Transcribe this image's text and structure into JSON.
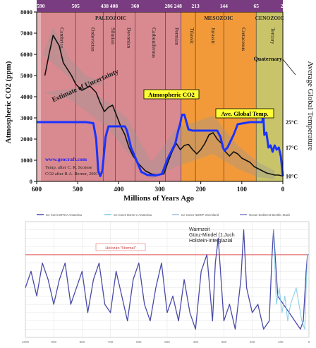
{
  "chart_data": [
    {
      "type": "line",
      "xlabel": "Millions of Years Ago",
      "ylabel": "Atmospheric CO2 (ppm)",
      "ylabel_right": "Average Global Temperature",
      "xlim": [
        600,
        0
      ],
      "ylim": [
        0,
        8000
      ],
      "x_ticks": [
        600,
        500,
        400,
        300,
        200,
        100,
        0
      ],
      "y_ticks": [
        0,
        1000,
        2000,
        3000,
        4000,
        5000,
        6000,
        7000,
        8000
      ],
      "top_ticks": [
        "590",
        "505",
        "438 408",
        "360",
        "286 248",
        "213",
        "144",
        "65",
        "2"
      ],
      "right_ticks": [
        {
          "label": "25°C",
          "level": 2800
        },
        {
          "label": "17°C",
          "level": 1600
        },
        {
          "label": "10°C",
          "level": 250
        }
      ],
      "eras": [
        {
          "label": "PALEOZOIC",
          "from": 590,
          "to": 248,
          "color": "#d98a90"
        },
        {
          "label": "MESOZOIC",
          "from": 248,
          "to": 65,
          "color": "#f29a3a"
        },
        {
          "label": "CENOZOIC",
          "from": 65,
          "to": 0,
          "color": "#c9c46a"
        }
      ],
      "periods": [
        {
          "label": "Cambrian",
          "from": 590,
          "to": 505
        },
        {
          "label": "Ordovician",
          "from": 505,
          "to": 438
        },
        {
          "label": "Silurian",
          "from": 438,
          "to": 408
        },
        {
          "label": "Devonian",
          "from": 408,
          "to": 360
        },
        {
          "label": "Carboniferous",
          "from": 360,
          "to": 286
        },
        {
          "label": "Permian",
          "from": 286,
          "to": 248
        },
        {
          "label": "Triassic",
          "from": 248,
          "to": 213
        },
        {
          "label": "Jurassic",
          "from": 213,
          "to": 144
        },
        {
          "label": "Cretaceous",
          "from": 144,
          "to": 65
        },
        {
          "label": "Tertiary",
          "from": 65,
          "to": 2
        }
      ],
      "quaternary_label": "Quaternary",
      "annotations": {
        "uncertainty": "Estimate of Uncertainty",
        "co2_label": "Atmospheric CO2",
        "temp_label": "Ave. Global Temp.",
        "site": "www.geocraft.com",
        "credit1": "Temp. after C. R. Scotese",
        "credit2": "CO2 after R.A. Berner, 2001"
      },
      "series": [
        {
          "name": "Atmospheric CO2",
          "color": "#111111",
          "x": [
            580,
            570,
            560,
            545,
            535,
            525,
            515,
            505,
            490,
            470,
            455,
            445,
            435,
            425,
            415,
            405,
            395,
            385,
            375,
            365,
            350,
            335,
            320,
            305,
            290,
            280,
            270,
            260,
            250,
            240,
            230,
            220,
            210,
            200,
            190,
            180,
            170,
            160,
            150,
            140,
            130,
            120,
            110,
            100,
            90,
            80,
            70,
            60,
            50,
            40,
            30,
            20,
            10,
            0
          ],
          "values": [
            5000,
            6000,
            6900,
            6400,
            5600,
            5300,
            5000,
            4600,
            4300,
            4500,
            4200,
            3700,
            3300,
            3500,
            3600,
            3100,
            2600,
            2200,
            1600,
            1200,
            800,
            500,
            350,
            300,
            350,
            900,
            1400,
            1800,
            1500,
            1700,
            1750,
            1500,
            1300,
            1500,
            1800,
            2200,
            2300,
            2000,
            1800,
            1400,
            1200,
            1400,
            1300,
            1100,
            1000,
            900,
            700,
            600,
            500,
            400,
            350,
            300,
            300,
            250
          ]
        },
        {
          "name": "Ave. Global Temp.",
          "color": "#1a33ff",
          "x": [
            600,
            480,
            462,
            455,
            450,
            445,
            440,
            432,
            425,
            400,
            385,
            380,
            370,
            345,
            330,
            310,
            295,
            280,
            262,
            255,
            250,
            246,
            240,
            230,
            220,
            210,
            195,
            190,
            180,
            170,
            160,
            152,
            146,
            142,
            135,
            120,
            110,
            80,
            60,
            50,
            48,
            45,
            40,
            35,
            30,
            25,
            20,
            15,
            10,
            5,
            0
          ],
          "values": [
            2800,
            2800,
            2750,
            2000,
            500,
            250,
            500,
            2100,
            2600,
            2600,
            2600,
            2400,
            1600,
            450,
            300,
            280,
            350,
            1100,
            1800,
            2400,
            2750,
            3150,
            3150,
            2450,
            2400,
            2400,
            2400,
            2400,
            2400,
            2400,
            2400,
            2100,
            1600,
            1450,
            1600,
            2200,
            2700,
            2800,
            2800,
            2800,
            3200,
            2200,
            2300,
            1600,
            1700,
            1400,
            1700,
            1500,
            1600,
            1200,
            250
          ]
        }
      ]
    },
    {
      "type": "line",
      "title": "",
      "xlabel": "",
      "ylabel": "",
      "legend": [
        "Ice Cores EPICA Antarctica",
        "Ice Cores Dome C Antarctica",
        "Ice Cores NGRIP Greenland",
        "Ocean Sediment Benthic Stack"
      ],
      "reference_label": "Holozän \"Normal\"",
      "reference_level": 0,
      "annotation": "Warmzeit Günz-Mindel (1.Juch Holstein-Interglazial",
      "ylim": [
        -10,
        4
      ],
      "xlim": [
        1000,
        0
      ],
      "x_ticks": [
        1000,
        900,
        800,
        700,
        600,
        500,
        400,
        300,
        200,
        100,
        0
      ],
      "series": [
        {
          "name": "Ice Cores EPICA Antarctica",
          "color": "#4a4aa8",
          "x": [
            1000,
            980,
            960,
            940,
            920,
            900,
            880,
            860,
            840,
            820,
            800,
            780,
            760,
            740,
            720,
            700,
            680,
            660,
            640,
            620,
            600,
            580,
            560,
            540,
            520,
            500,
            480,
            460,
            440,
            420,
            400,
            380,
            360,
            340,
            330,
            320,
            300,
            280,
            260,
            240,
            230,
            220,
            200,
            180,
            160,
            140,
            130,
            125,
            110,
            90,
            70,
            50,
            30,
            20,
            10,
            5,
            0
          ],
          "values": [
            -4,
            -2,
            -5,
            -1,
            -3,
            -6,
            -3,
            -1,
            -6,
            -4,
            -2,
            -7,
            -3,
            -1,
            -6,
            -7,
            -2,
            -5,
            -8,
            -3,
            -1,
            -6,
            -8,
            -4,
            -1,
            -7,
            -5,
            -8,
            -3,
            -7,
            -9,
            -2,
            0,
            -8,
            -1,
            2,
            -8,
            -6,
            -9,
            -3,
            3,
            -4,
            -7,
            -6,
            -9,
            -8,
            0,
            3,
            -5,
            -6,
            -7,
            -8,
            -9,
            -8,
            -2,
            0,
            0
          ]
        },
        {
          "name": "Ice Cores NGRIP Greenland",
          "color": "#7cc8e8",
          "x": [
            125,
            115,
            105,
            95,
            85,
            75,
            65,
            55,
            45,
            35,
            25,
            15,
            10,
            5,
            0
          ],
          "values": [
            3,
            -6,
            -4,
            -7,
            -5,
            -8,
            -6,
            -5,
            -4,
            -6,
            -8,
            -9,
            -4,
            0,
            0
          ]
        }
      ]
    }
  ]
}
